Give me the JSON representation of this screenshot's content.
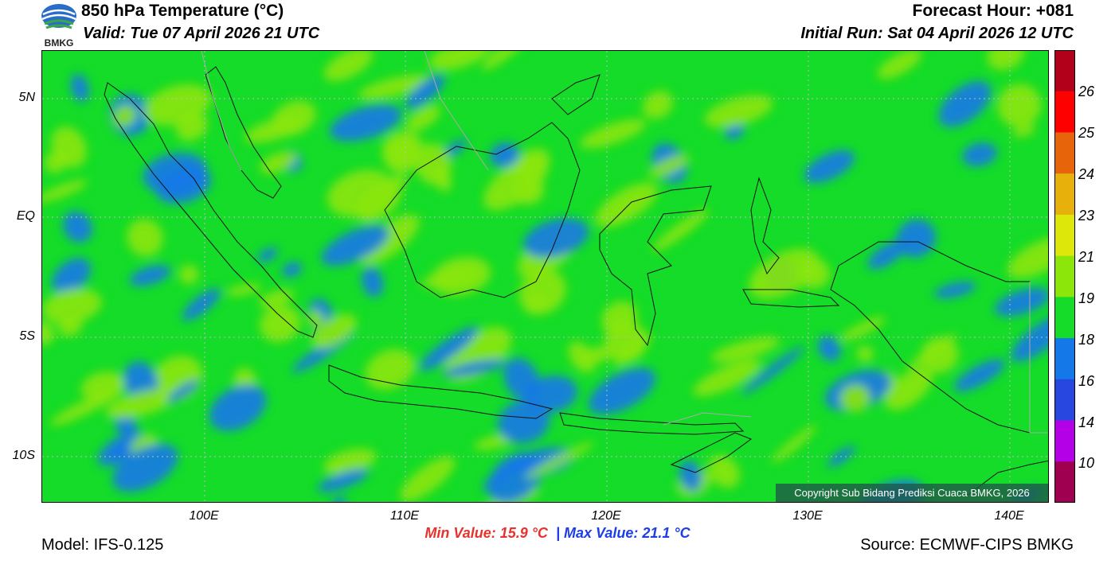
{
  "header": {
    "logo_text": "BMKG",
    "title": "850 hPa Temperature (°C)",
    "valid": "Valid: Tue 07 April 2026 21 UTC",
    "forecast_hour": "Forecast Hour: +081",
    "initial_run": "Initial Run: Sat 04 April 2026 12 UTC"
  },
  "map": {
    "lat_labels": [
      "5N",
      "EQ",
      "5S",
      "10S"
    ],
    "lon_labels": [
      "100E",
      "110E",
      "120E",
      "130E",
      "140E"
    ],
    "copyright": "Copyright Sub Bidang Prediksi Cuaca BMKG, 2026"
  },
  "colorbar": {
    "labels": [
      "26",
      "25",
      "24",
      "23",
      "21",
      "19",
      "18",
      "16",
      "14",
      "10"
    ],
    "colors": [
      "#b3001a",
      "#ff0000",
      "#e8640a",
      "#e8b00a",
      "#dde80a",
      "#8ce60a",
      "#14dc28",
      "#1478e8",
      "#2846e0",
      "#b400e6",
      "#a00050"
    ]
  },
  "stats": {
    "min_label": "Min Value: 15.9 °C",
    "separator": "|",
    "max_label": "Max Value: 21.1 °C"
  },
  "footer": {
    "model": "Model: IFS-0.125",
    "source": "Source: ECMWF-CIPS BMKG"
  }
}
